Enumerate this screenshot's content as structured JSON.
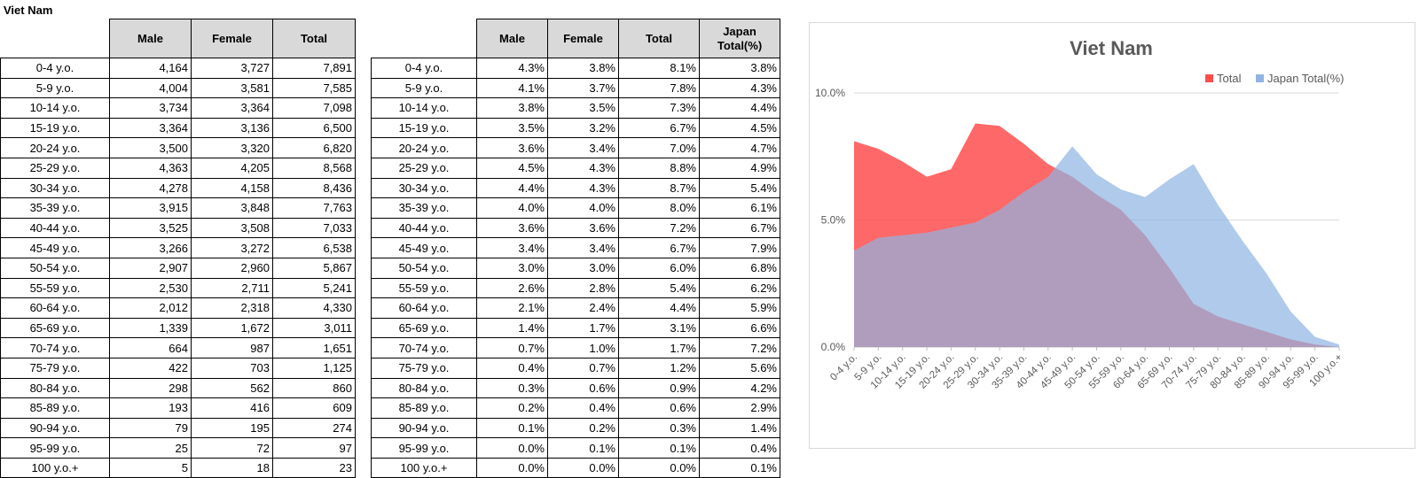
{
  "sheet_title": "Viet Nam",
  "counts_table": {
    "headers": [
      "Male",
      "Female",
      "Total"
    ],
    "rows": [
      {
        "label": "0-4 y.o.",
        "male": "4,164",
        "female": "3,727",
        "total": "7,891"
      },
      {
        "label": "5-9 y.o.",
        "male": "4,004",
        "female": "3,581",
        "total": "7,585"
      },
      {
        "label": "10-14 y.o.",
        "male": "3,734",
        "female": "3,364",
        "total": "7,098"
      },
      {
        "label": "15-19 y.o.",
        "male": "3,364",
        "female": "3,136",
        "total": "6,500"
      },
      {
        "label": "20-24 y.o.",
        "male": "3,500",
        "female": "3,320",
        "total": "6,820"
      },
      {
        "label": "25-29 y.o.",
        "male": "4,363",
        "female": "4,205",
        "total": "8,568"
      },
      {
        "label": "30-34 y.o.",
        "male": "4,278",
        "female": "4,158",
        "total": "8,436"
      },
      {
        "label": "35-39 y.o.",
        "male": "3,915",
        "female": "3,848",
        "total": "7,763"
      },
      {
        "label": "40-44 y.o.",
        "male": "3,525",
        "female": "3,508",
        "total": "7,033"
      },
      {
        "label": "45-49 y.o.",
        "male": "3,266",
        "female": "3,272",
        "total": "6,538"
      },
      {
        "label": "50-54 y.o.",
        "male": "2,907",
        "female": "2,960",
        "total": "5,867"
      },
      {
        "label": "55-59 y.o.",
        "male": "2,530",
        "female": "2,711",
        "total": "5,241"
      },
      {
        "label": "60-64 y.o.",
        "male": "2,012",
        "female": "2,318",
        "total": "4,330"
      },
      {
        "label": "65-69 y.o.",
        "male": "1,339",
        "female": "1,672",
        "total": "3,011"
      },
      {
        "label": "70-74 y.o.",
        "male": "664",
        "female": "987",
        "total": "1,651"
      },
      {
        "label": "75-79 y.o.",
        "male": "422",
        "female": "703",
        "total": "1,125"
      },
      {
        "label": "80-84 y.o.",
        "male": "298",
        "female": "562",
        "total": "860"
      },
      {
        "label": "85-89 y.o.",
        "male": "193",
        "female": "416",
        "total": "609"
      },
      {
        "label": "90-94 y.o.",
        "male": "79",
        "female": "195",
        "total": "274"
      },
      {
        "label": "95-99 y.o.",
        "male": "25",
        "female": "72",
        "total": "97"
      },
      {
        "label": "100 y.o.+",
        "male": "5",
        "female": "18",
        "total": "23"
      }
    ]
  },
  "pct_table": {
    "headers": [
      "Male",
      "Female",
      "Total",
      "Japan Total(%)"
    ],
    "rows": [
      {
        "label": "0-4 y.o.",
        "male": "4.3%",
        "female": "3.8%",
        "total": "8.1%",
        "japan": "3.8%"
      },
      {
        "label": "5-9 y.o.",
        "male": "4.1%",
        "female": "3.7%",
        "total": "7.8%",
        "japan": "4.3%"
      },
      {
        "label": "10-14 y.o.",
        "male": "3.8%",
        "female": "3.5%",
        "total": "7.3%",
        "japan": "4.4%"
      },
      {
        "label": "15-19 y.o.",
        "male": "3.5%",
        "female": "3.2%",
        "total": "6.7%",
        "japan": "4.5%"
      },
      {
        "label": "20-24 y.o.",
        "male": "3.6%",
        "female": "3.4%",
        "total": "7.0%",
        "japan": "4.7%"
      },
      {
        "label": "25-29 y.o.",
        "male": "4.5%",
        "female": "4.3%",
        "total": "8.8%",
        "japan": "4.9%"
      },
      {
        "label": "30-34 y.o.",
        "male": "4.4%",
        "female": "4.3%",
        "total": "8.7%",
        "japan": "5.4%"
      },
      {
        "label": "35-39 y.o.",
        "male": "4.0%",
        "female": "4.0%",
        "total": "8.0%",
        "japan": "6.1%"
      },
      {
        "label": "40-44 y.o.",
        "male": "3.6%",
        "female": "3.6%",
        "total": "7.2%",
        "japan": "6.7%"
      },
      {
        "label": "45-49 y.o.",
        "male": "3.4%",
        "female": "3.4%",
        "total": "6.7%",
        "japan": "7.9%"
      },
      {
        "label": "50-54 y.o.",
        "male": "3.0%",
        "female": "3.0%",
        "total": "6.0%",
        "japan": "6.8%"
      },
      {
        "label": "55-59 y.o.",
        "male": "2.6%",
        "female": "2.8%",
        "total": "5.4%",
        "japan": "6.2%"
      },
      {
        "label": "60-64 y.o.",
        "male": "2.1%",
        "female": "2.4%",
        "total": "4.4%",
        "japan": "5.9%"
      },
      {
        "label": "65-69 y.o.",
        "male": "1.4%",
        "female": "1.7%",
        "total": "3.1%",
        "japan": "6.6%"
      },
      {
        "label": "70-74 y.o.",
        "male": "0.7%",
        "female": "1.0%",
        "total": "1.7%",
        "japan": "7.2%"
      },
      {
        "label": "75-79 y.o.",
        "male": "0.4%",
        "female": "0.7%",
        "total": "1.2%",
        "japan": "5.6%"
      },
      {
        "label": "80-84 y.o.",
        "male": "0.3%",
        "female": "0.6%",
        "total": "0.9%",
        "japan": "4.2%"
      },
      {
        "label": "85-89 y.o.",
        "male": "0.2%",
        "female": "0.4%",
        "total": "0.6%",
        "japan": "2.9%"
      },
      {
        "label": "90-94 y.o.",
        "male": "0.1%",
        "female": "0.2%",
        "total": "0.3%",
        "japan": "1.4%"
      },
      {
        "label": "95-99 y.o.",
        "male": "0.0%",
        "female": "0.1%",
        "total": "0.1%",
        "japan": "0.4%"
      },
      {
        "label": "100 y.o.+",
        "male": "0.0%",
        "female": "0.0%",
        "total": "0.0%",
        "japan": "0.1%"
      }
    ]
  },
  "chart_data": {
    "type": "area",
    "title": "Viet Nam",
    "categories": [
      "0-4 y.o.",
      "5-9 y.o.",
      "10-14 y.o.",
      "15-19 y.o.",
      "20-24 y.o.",
      "25-29 y.o.",
      "30-34 y.o.",
      "35-39 y.o.",
      "40-44 y.o.",
      "45-49 y.o.",
      "50-54 y.o.",
      "55-59 y.o.",
      "60-64 y.o.",
      "65-69 y.o.",
      "70-74 y.o.",
      "75-79 y.o.",
      "80-84 y.o.",
      "85-89 y.o.",
      "90-94 y.o.",
      "95-99 y.o.",
      "100 y.o.+"
    ],
    "series": [
      {
        "name": "Total",
        "color": "#ff4d4d",
        "values": [
          8.1,
          7.8,
          7.3,
          6.7,
          7.0,
          8.8,
          8.7,
          8.0,
          7.2,
          6.7,
          6.0,
          5.4,
          4.4,
          3.1,
          1.7,
          1.2,
          0.9,
          0.6,
          0.3,
          0.1,
          0.0
        ]
      },
      {
        "name": "Japan Total(%)",
        "color": "#8fb4e3",
        "values": [
          3.8,
          4.3,
          4.4,
          4.5,
          4.7,
          4.9,
          5.4,
          6.1,
          6.7,
          7.9,
          6.8,
          6.2,
          5.9,
          6.6,
          7.2,
          5.6,
          4.2,
          2.9,
          1.4,
          0.4,
          0.1
        ]
      }
    ],
    "ylim": [
      0,
      10
    ],
    "yticks": [
      0,
      5,
      10
    ],
    "ytick_labels": [
      "0.0%",
      "5.0%",
      "10.0%"
    ],
    "xlabel": "",
    "ylabel": "",
    "grid": true,
    "legend_position": "top-right"
  }
}
